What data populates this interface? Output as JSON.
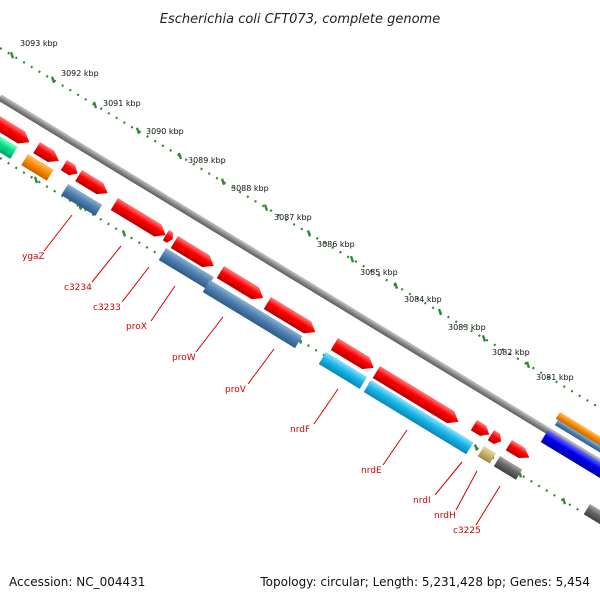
{
  "title": "Escherichia coli CFT073, complete genome",
  "footer": {
    "accession": "Accession: NC_004431",
    "summary": "Topology: circular; Length: 5,231,428 bp; Genes: 5,454"
  },
  "kbp_ticks": [
    "3093 kbp",
    "3092 kbp",
    "3091 kbp",
    "3090 kbp",
    "3089 kbp",
    "3088 kbp",
    "3087 kbp",
    "3086 kbp",
    "3085 kbp",
    "3084 kbp",
    "3083 kbp",
    "3082 kbp",
    "3081 kbp"
  ],
  "genes": [
    "ygaZ",
    "c3234",
    "c3233",
    "proX",
    "proW",
    "proV",
    "nrdF",
    "nrdE",
    "nrdI",
    "nrdH",
    "c3225"
  ],
  "colors": {
    "red": "#ff0000",
    "steel_blue": "#4f80b0",
    "sky_blue": "#19b8ea",
    "orange": "#ff8c00",
    "green": "#00e08a",
    "gray": "#666666",
    "tan": "#c8b46c",
    "blue": "#0000f0",
    "tick_green": "#2e8b2e",
    "backbone": "#888888",
    "label_red": "#d40000"
  }
}
